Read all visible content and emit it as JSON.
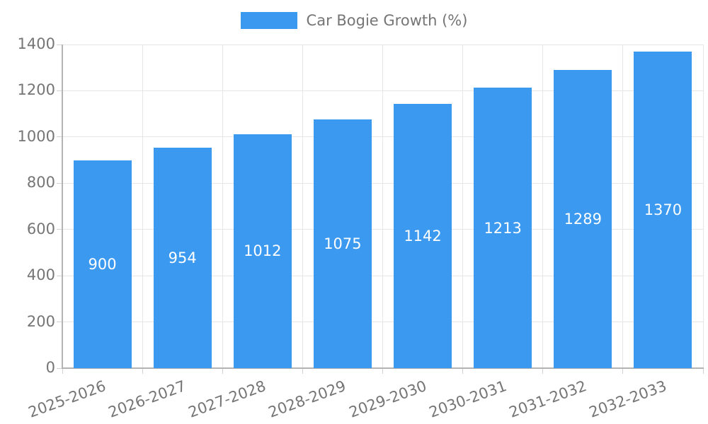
{
  "chart_data": {
    "type": "bar",
    "title": "",
    "categories": [
      "2025-2026",
      "2026-2027",
      "2027-2028",
      "2028-2029",
      "2029-2030",
      "2030-2031",
      "2031-2032",
      "2032-2033"
    ],
    "series": [
      {
        "name": "Car Bogie Growth (%)",
        "values": [
          900,
          954,
          1012,
          1075,
          1142,
          1213,
          1289,
          1370
        ]
      }
    ],
    "xlabel": "",
    "ylabel": "",
    "ylim": [
      0,
      1400
    ],
    "yticks": [
      0,
      200,
      400,
      600,
      800,
      1000,
      1200,
      1400
    ],
    "grid": true,
    "legend_position": "top-center",
    "value_labels_shown": true,
    "colors": {
      "bar": "#3B99F0",
      "bar_label": "#FFFFFF",
      "tick_text": "#757575",
      "grid": "#E6E6E6",
      "tick_mark": "#D2D2D2",
      "axis": "#B3B3B3"
    }
  }
}
